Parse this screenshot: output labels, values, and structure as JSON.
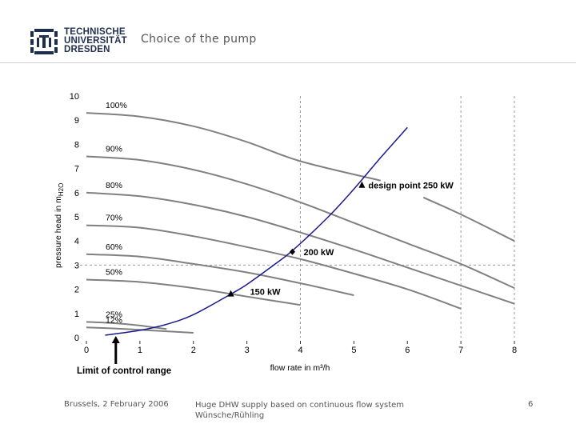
{
  "header": {
    "logo_lines": [
      "TECHNISCHE",
      "UNIVERSITÄT",
      "DRESDEN"
    ],
    "slide_title": "Choice of the pump"
  },
  "footer": {
    "date": "Brussels, 2 February 2006",
    "topic_line1": "Huge DHW supply based on continuous flow system",
    "topic_line2": "Wünsche/Rühling",
    "page_number": "6"
  },
  "colors": {
    "pump_curve": "#808080",
    "system_curve": "#1a1a8c",
    "gridline": "#9a9a9a"
  },
  "chart_data": {
    "type": "line",
    "xlabel": "flow rate in m³/h",
    "ylabel": "pressure head in m",
    "ylabel_subscript": "H2O",
    "xlim": [
      0,
      8
    ],
    "ylim": [
      0,
      10
    ],
    "x_ticks": [
      0,
      1,
      2,
      3,
      4,
      5,
      6,
      7,
      8
    ],
    "y_ticks": [
      0,
      1,
      2,
      3,
      4,
      5,
      6,
      7,
      8,
      9,
      10
    ],
    "grid": "dashed vertical and horizontal reference lines",
    "reference_lines": {
      "x": [
        4,
        7
      ],
      "y": [
        3
      ]
    },
    "pump_curves": [
      {
        "name": "100%",
        "label": "100%",
        "x": [
          0,
          1,
          2,
          3,
          4,
          5.5
        ],
        "y": [
          9.3,
          9.15,
          8.75,
          8.1,
          7.3,
          6.5
        ]
      },
      {
        "name": "100% continued",
        "label": "",
        "x": [
          6.3,
          7,
          8
        ],
        "y": [
          5.8,
          5.1,
          4.0
        ]
      },
      {
        "name": "90%",
        "label": "90%",
        "x": [
          0,
          1,
          2,
          3,
          4,
          5,
          6,
          7,
          8
        ],
        "y": [
          7.5,
          7.35,
          6.95,
          6.35,
          5.6,
          4.75,
          3.9,
          3.05,
          2.05
        ]
      },
      {
        "name": "80%",
        "label": "80%",
        "x": [
          0,
          1,
          2,
          3,
          4,
          5,
          6,
          8
        ],
        "y": [
          6.0,
          5.85,
          5.5,
          5.0,
          4.35,
          3.65,
          2.9,
          1.4
        ]
      },
      {
        "name": "70%",
        "label": "70%",
        "x": [
          0,
          1,
          2,
          3,
          4,
          5,
          6,
          7
        ],
        "y": [
          4.65,
          4.55,
          4.2,
          3.75,
          3.25,
          2.65,
          2.0,
          1.2
        ]
      },
      {
        "name": "60%",
        "label": "60%",
        "x": [
          0,
          1,
          2,
          3,
          4,
          5
        ],
        "y": [
          3.45,
          3.35,
          3.05,
          2.7,
          2.25,
          1.75
        ]
      },
      {
        "name": "50%",
        "label": "50%",
        "x": [
          0,
          1,
          2,
          3,
          4
        ],
        "y": [
          2.4,
          2.3,
          2.05,
          1.7,
          1.35
        ]
      },
      {
        "name": "25%",
        "label": "25%",
        "x": [
          0,
          0.5,
          1,
          1.5
        ],
        "y": [
          0.65,
          0.6,
          0.5,
          0.35
        ]
      },
      {
        "name": "12%",
        "label": "12%",
        "x": [
          0,
          0.5,
          1,
          2
        ],
        "y": [
          0.42,
          0.38,
          0.32,
          0.2
        ]
      }
    ],
    "system_curve": {
      "name": "system curve",
      "x": [
        0.35,
        1.0,
        1.5,
        2.0,
        2.7,
        3.0,
        3.5,
        3.85,
        4.5,
        5.0,
        5.5,
        6.0
      ],
      "y": [
        0.1,
        0.3,
        0.55,
        0.95,
        1.8,
        2.2,
        3.0,
        3.6,
        4.95,
        6.15,
        7.45,
        8.7
      ]
    },
    "operating_points": [
      {
        "label": "150 kW",
        "x": 2.7,
        "y": 1.8,
        "marker": "triangle"
      },
      {
        "label": "200 kW",
        "x": 3.85,
        "y": 3.55,
        "marker": "diamond"
      },
      {
        "label": "design point 250 kW",
        "x": 5.15,
        "y": 6.3,
        "marker": "triangle"
      }
    ],
    "annotations": [
      {
        "label": "Limit of control range",
        "x": 0.55
      }
    ]
  }
}
